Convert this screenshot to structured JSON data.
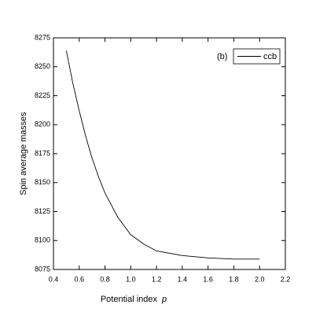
{
  "chart_data": {
    "type": "line",
    "xlabel": "Potential index",
    "xlabel_symbol": "p",
    "ylabel": "Spin average masses",
    "annotation": "(b)",
    "x": [
      0.5,
      0.55,
      0.6,
      0.65,
      0.7,
      0.75,
      0.8,
      0.9,
      1.0,
      1.1,
      1.2,
      1.4,
      1.6,
      1.8,
      2.0
    ],
    "series": [
      {
        "name": "ccb",
        "color": "#000000",
        "values": [
          8264,
          8236,
          8212,
          8190,
          8171,
          8155,
          8141,
          8120,
          8105,
          8097,
          8091,
          8087,
          8085,
          8084,
          8084
        ]
      }
    ],
    "xlim": [
      0.4,
      2.2
    ],
    "xticks": [
      0.4,
      0.6,
      0.8,
      {
        "value": 1,
        "label": "1.0"
      },
      1.2,
      1.4,
      1.6,
      1.8,
      {
        "value": 2,
        "label": "2.0"
      },
      2.2
    ],
    "ylim": [
      8075,
      8275
    ],
    "yticks": [
      8075,
      8100,
      8125,
      8150,
      8175,
      8200,
      8225,
      8250,
      8275
    ],
    "legend": "upper right",
    "grid": false
  }
}
